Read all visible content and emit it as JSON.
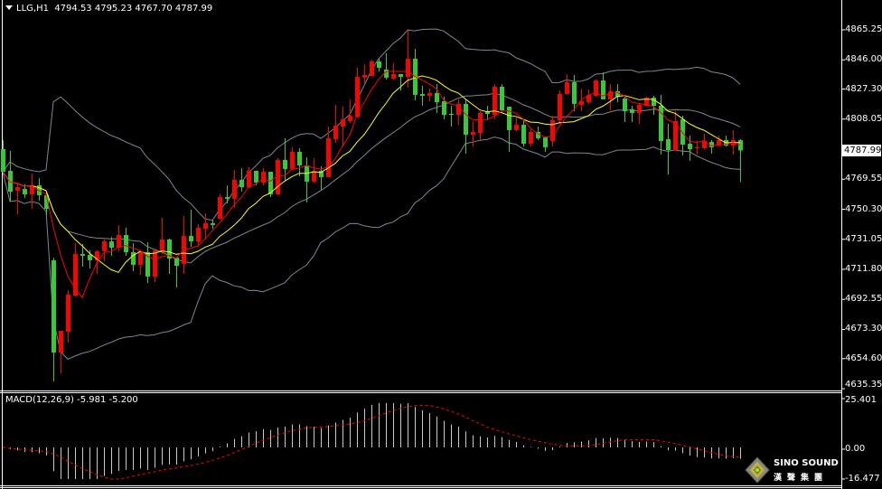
{
  "header": {
    "symbol": "LLG,H1",
    "ohlc": "4794.53 4795.23 4767.70 4787.99"
  },
  "colors": {
    "background": "#000000",
    "bull_candle": "#ff0000",
    "bear_candle": "#32cd32",
    "fast_ma": "#ff0000",
    "slow_ma": "#ffff00",
    "bollinger": "#7b8794",
    "macd_histogram": "#c8c8c8",
    "macd_signal": "#ff0000"
  },
  "price_axis": {
    "ticks": [
      "4865.25",
      "4846.00",
      "4827.30",
      "4808.05",
      "4769.55",
      "4750.30",
      "4731.05",
      "4711.80",
      "4692.55",
      "4673.30",
      "4654.60",
      "4635.35"
    ],
    "current_price": "4787.99"
  },
  "macd": {
    "title": "MACD(12,26,9) -5.981 -5.200",
    "params": [
      12,
      26,
      9
    ],
    "ticks": [
      "25.401",
      "0.00",
      "-16.477"
    ],
    "ylim": [
      -16.477,
      25.401
    ]
  },
  "logo": {
    "brand": "SINO SOUND",
    "chinese": "漢聲集團"
  },
  "chart_data": {
    "type": "candlestick",
    "timeframe": "H1",
    "ylim": [
      4635.35,
      4865.25
    ],
    "bullish_color": "red",
    "bearish_color": "green",
    "ohlc": [
      [
        4788.8,
        4794.6,
        4773.2,
        4774.3
      ],
      [
        4774.9,
        4787.7,
        4755.2,
        4761.6
      ],
      [
        4762.2,
        4766.8,
        4747.1,
        4764.5
      ],
      [
        4763.3,
        4766.2,
        4757.5,
        4759.9
      ],
      [
        4759.9,
        4773.2,
        4750.6,
        4765.6
      ],
      [
        4765.6,
        4770.3,
        4755.8,
        4759.3
      ],
      [
        4759.3,
        4761.0,
        4746.5,
        4750.6
      ],
      [
        4717.6,
        4719.3,
        4640.0,
        4658.5
      ],
      [
        4658.5,
        4672.4,
        4645.2,
        4672.4
      ],
      [
        4671.8,
        4698.5,
        4664.9,
        4695.6
      ],
      [
        4695.0,
        4728.6,
        4694.4,
        4721.6
      ],
      [
        4721.6,
        4728.0,
        4713.5,
        4720.5
      ],
      [
        4721.1,
        4724.0,
        4712.4,
        4717.6
      ],
      [
        4717.6,
        4724.0,
        4708.9,
        4723.4
      ],
      [
        4723.4,
        4730.9,
        4717.0,
        4729.7
      ],
      [
        4729.7,
        4732.6,
        4720.5,
        4725.7
      ],
      [
        4725.7,
        4740.2,
        4723.4,
        4733.8
      ],
      [
        4733.8,
        4738.4,
        4720.5,
        4722.8
      ],
      [
        4722.8,
        4728.6,
        4710.6,
        4714.7
      ],
      [
        4714.7,
        4723.4,
        4708.3,
        4722.8
      ],
      [
        4722.8,
        4729.2,
        4703.1,
        4707.2
      ],
      [
        4707.2,
        4724.0,
        4703.7,
        4724.0
      ],
      [
        4723.4,
        4744.8,
        4721.6,
        4730.9
      ],
      [
        4730.9,
        4731.5,
        4708.9,
        4718.7
      ],
      [
        4719.3,
        4719.3,
        4700.2,
        4714.1
      ],
      [
        4715.3,
        4746.0,
        4708.9,
        4733.2
      ],
      [
        4733.2,
        4750.0,
        4726.3,
        4729.7
      ],
      [
        4729.7,
        4740.7,
        4726.3,
        4738.4
      ],
      [
        4737.8,
        4747.7,
        4730.9,
        4741.3
      ],
      [
        4741.3,
        4743.6,
        4737.8,
        4740.2
      ],
      [
        4744.2,
        4759.9,
        4743.6,
        4758.1
      ],
      [
        4758.1,
        4765.6,
        4754.1,
        4757.0
      ],
      [
        4757.0,
        4775.5,
        4751.2,
        4769.1
      ],
      [
        4769.1,
        4776.6,
        4761.6,
        4764.5
      ],
      [
        4764.5,
        4777.2,
        4763.9,
        4774.9
      ],
      [
        4774.9,
        4774.9,
        4765.6,
        4767.4
      ],
      [
        4767.4,
        4776.6,
        4765.6,
        4774.3
      ],
      [
        4774.3,
        4774.3,
        4758.1,
        4759.9
      ],
      [
        4759.9,
        4783.0,
        4759.9,
        4781.9
      ],
      [
        4781.9,
        4795.8,
        4768.5,
        4776.1
      ],
      [
        4776.1,
        4790.0,
        4775.5,
        4787.1
      ],
      [
        4787.1,
        4789.4,
        4771.4,
        4778.4
      ],
      [
        4778.4,
        4783.6,
        4754.6,
        4768.0
      ],
      [
        4768.0,
        4783.0,
        4767.4,
        4774.9
      ],
      [
        4774.9,
        4777.8,
        4762.8,
        4770.9
      ],
      [
        4770.9,
        4803.3,
        4770.9,
        4795.8
      ],
      [
        4795.2,
        4817.2,
        4792.9,
        4803.9
      ],
      [
        4803.3,
        4816.0,
        4790.5,
        4807.9
      ],
      [
        4806.8,
        4820.7,
        4805.6,
        4810.2
      ],
      [
        4809.6,
        4840.9,
        4809.1,
        4835.1
      ],
      [
        4834.6,
        4843.2,
        4830.5,
        4836.3
      ],
      [
        4835.7,
        4846.1,
        4835.1,
        4845.0
      ],
      [
        4845.0,
        4846.7,
        4838.6,
        4840.9
      ],
      [
        4839.8,
        4850.2,
        4833.4,
        4834.6
      ],
      [
        4834.0,
        4843.8,
        4833.4,
        4836.9
      ],
      [
        4836.9,
        4836.9,
        4826.4,
        4835.1
      ],
      [
        4835.1,
        4865.8,
        4828.2,
        4846.7
      ],
      [
        4846.7,
        4853.1,
        4820.1,
        4823.6
      ],
      [
        4824.1,
        4829.4,
        4816.6,
        4823.0
      ],
      [
        4823.0,
        4827.6,
        4819.5,
        4824.7
      ],
      [
        4824.7,
        4830.5,
        4812.0,
        4818.9
      ],
      [
        4819.5,
        4822.4,
        4807.9,
        4810.8
      ],
      [
        4811.4,
        4816.6,
        4803.3,
        4810.8
      ],
      [
        4810.8,
        4820.7,
        4804.4,
        4817.8
      ],
      [
        4817.8,
        4820.7,
        4785.9,
        4798.1
      ],
      [
        4798.1,
        4806.2,
        4790.5,
        4799.8
      ],
      [
        4799.2,
        4813.1,
        4794.6,
        4812.0
      ],
      [
        4812.6,
        4816.6,
        4807.3,
        4811.4
      ],
      [
        4810.8,
        4830.5,
        4807.9,
        4828.8
      ],
      [
        4828.8,
        4830.5,
        4813.1,
        4813.7
      ],
      [
        4816.0,
        4816.0,
        4787.1,
        4801.0
      ],
      [
        4801.0,
        4809.1,
        4800.4,
        4804.4
      ],
      [
        4804.4,
        4807.3,
        4790.5,
        4792.3
      ],
      [
        4792.3,
        4801.5,
        4790.5,
        4799.8
      ],
      [
        4799.8,
        4803.3,
        4794.6,
        4795.8
      ],
      [
        4796.3,
        4796.3,
        4787.1,
        4790.0
      ],
      [
        4794.0,
        4810.2,
        4790.5,
        4807.3
      ],
      [
        4807.3,
        4826.4,
        4805.0,
        4824.1
      ],
      [
        4824.1,
        4836.9,
        4823.6,
        4831.7
      ],
      [
        4831.7,
        4836.3,
        4813.1,
        4817.8
      ],
      [
        4817.2,
        4827.6,
        4813.1,
        4819.5
      ],
      [
        4818.9,
        4827.0,
        4817.8,
        4823.6
      ],
      [
        4823.0,
        4833.4,
        4822.4,
        4832.8
      ],
      [
        4832.8,
        4838.0,
        4820.7,
        4820.7
      ],
      [
        4820.7,
        4830.5,
        4813.7,
        4825.9
      ],
      [
        4825.9,
        4830.5,
        4818.9,
        4822.4
      ],
      [
        4821.2,
        4822.4,
        4806.2,
        4813.1
      ],
      [
        4814.3,
        4816.6,
        4806.2,
        4812.0
      ],
      [
        4812.0,
        4817.8,
        4805.0,
        4817.2
      ],
      [
        4816.6,
        4822.4,
        4816.0,
        4821.8
      ],
      [
        4821.8,
        4823.0,
        4810.8,
        4816.6
      ],
      [
        4816.6,
        4823.6,
        4785.3,
        4794.0
      ],
      [
        4795.2,
        4805.0,
        4772.6,
        4788.2
      ],
      [
        4788.2,
        4813.1,
        4787.7,
        4806.8
      ],
      [
        4807.9,
        4810.2,
        4784.8,
        4791.7
      ],
      [
        4792.3,
        4797.5,
        4781.3,
        4788.8
      ],
      [
        4789.4,
        4794.0,
        4785.3,
        4790.0
      ],
      [
        4789.4,
        4798.7,
        4788.8,
        4794.0
      ],
      [
        4793.4,
        4794.6,
        4785.9,
        4790.0
      ],
      [
        4791.1,
        4797.5,
        4790.5,
        4794.6
      ],
      [
        4794.6,
        4797.5,
        4790.5,
        4791.1
      ],
      [
        4791.1,
        4801.0,
        4785.3,
        4794.6
      ],
      [
        4794.53,
        4795.23,
        4767.7,
        4787.99
      ]
    ]
  }
}
